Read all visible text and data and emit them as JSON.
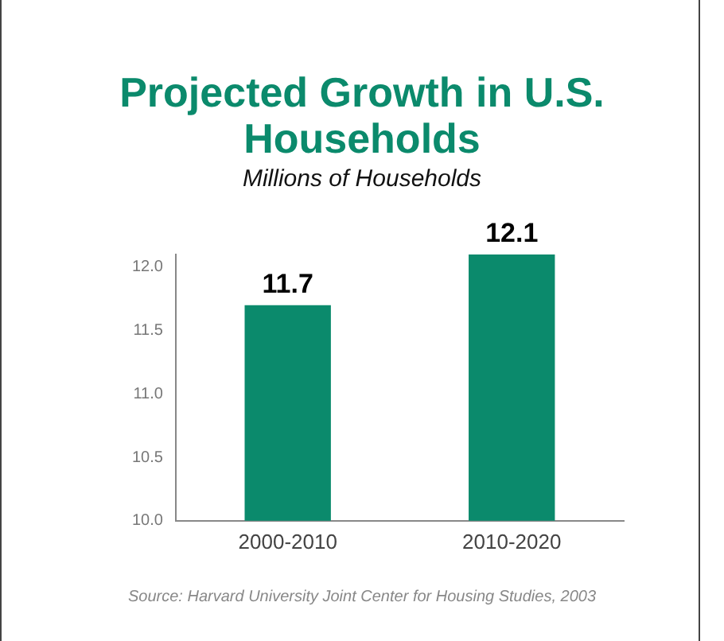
{
  "chart_data": {
    "type": "bar",
    "title": "Projected Growth in U.S. Households",
    "subtitle": "Millions of Households",
    "categories": [
      "2000-2010",
      "2010-2020"
    ],
    "values": [
      11.7,
      12.1
    ],
    "color": "#0b8a6c",
    "ylim": [
      10,
      12.1
    ],
    "yticks": [
      {
        "value": 10,
        "label": "10.0"
      },
      {
        "value": 10.5,
        "label": "10.5"
      },
      {
        "value": 11,
        "label": "11.0"
      },
      {
        "value": 11.5,
        "label": "11.5"
      },
      {
        "value": 12,
        "label": "12.0"
      }
    ],
    "grid": false,
    "legend": false,
    "data_labels": true,
    "annotations": [
      "Source: Harvard University Joint Center for Housing Studies, 2003"
    ]
  }
}
